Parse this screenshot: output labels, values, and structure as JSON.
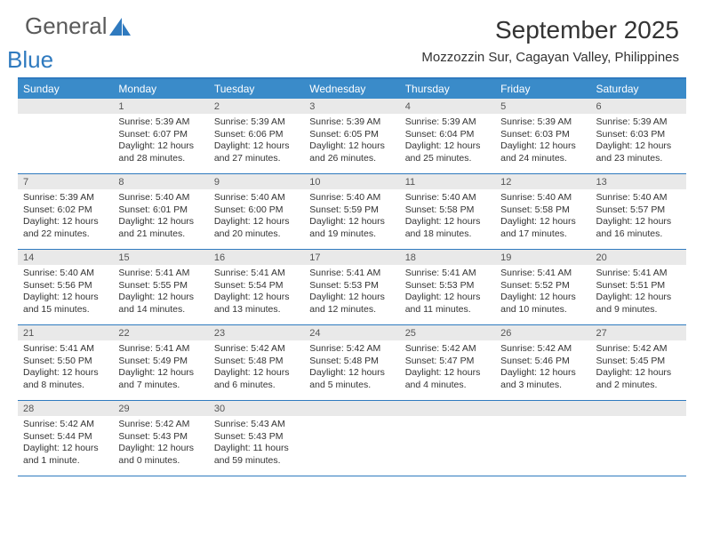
{
  "brand": {
    "general": "General",
    "blue": "Blue"
  },
  "title": "September 2025",
  "location": "Mozzozzin Sur, Cagayan Valley, Philippines",
  "colors": {
    "header_bg": "#3a8bc9",
    "border": "#2f7abf",
    "daynum_bg": "#e9e9e9",
    "text": "#333333",
    "page_bg": "#ffffff"
  },
  "days_of_week": [
    "Sunday",
    "Monday",
    "Tuesday",
    "Wednesday",
    "Thursday",
    "Friday",
    "Saturday"
  ],
  "weeks": [
    [
      {
        "n": "",
        "sunrise": "",
        "sunset": "",
        "daylight": ""
      },
      {
        "n": "1",
        "sunrise": "Sunrise: 5:39 AM",
        "sunset": "Sunset: 6:07 PM",
        "daylight": "Daylight: 12 hours and 28 minutes."
      },
      {
        "n": "2",
        "sunrise": "Sunrise: 5:39 AM",
        "sunset": "Sunset: 6:06 PM",
        "daylight": "Daylight: 12 hours and 27 minutes."
      },
      {
        "n": "3",
        "sunrise": "Sunrise: 5:39 AM",
        "sunset": "Sunset: 6:05 PM",
        "daylight": "Daylight: 12 hours and 26 minutes."
      },
      {
        "n": "4",
        "sunrise": "Sunrise: 5:39 AM",
        "sunset": "Sunset: 6:04 PM",
        "daylight": "Daylight: 12 hours and 25 minutes."
      },
      {
        "n": "5",
        "sunrise": "Sunrise: 5:39 AM",
        "sunset": "Sunset: 6:03 PM",
        "daylight": "Daylight: 12 hours and 24 minutes."
      },
      {
        "n": "6",
        "sunrise": "Sunrise: 5:39 AM",
        "sunset": "Sunset: 6:03 PM",
        "daylight": "Daylight: 12 hours and 23 minutes."
      }
    ],
    [
      {
        "n": "7",
        "sunrise": "Sunrise: 5:39 AM",
        "sunset": "Sunset: 6:02 PM",
        "daylight": "Daylight: 12 hours and 22 minutes."
      },
      {
        "n": "8",
        "sunrise": "Sunrise: 5:40 AM",
        "sunset": "Sunset: 6:01 PM",
        "daylight": "Daylight: 12 hours and 21 minutes."
      },
      {
        "n": "9",
        "sunrise": "Sunrise: 5:40 AM",
        "sunset": "Sunset: 6:00 PM",
        "daylight": "Daylight: 12 hours and 20 minutes."
      },
      {
        "n": "10",
        "sunrise": "Sunrise: 5:40 AM",
        "sunset": "Sunset: 5:59 PM",
        "daylight": "Daylight: 12 hours and 19 minutes."
      },
      {
        "n": "11",
        "sunrise": "Sunrise: 5:40 AM",
        "sunset": "Sunset: 5:58 PM",
        "daylight": "Daylight: 12 hours and 18 minutes."
      },
      {
        "n": "12",
        "sunrise": "Sunrise: 5:40 AM",
        "sunset": "Sunset: 5:58 PM",
        "daylight": "Daylight: 12 hours and 17 minutes."
      },
      {
        "n": "13",
        "sunrise": "Sunrise: 5:40 AM",
        "sunset": "Sunset: 5:57 PM",
        "daylight": "Daylight: 12 hours and 16 minutes."
      }
    ],
    [
      {
        "n": "14",
        "sunrise": "Sunrise: 5:40 AM",
        "sunset": "Sunset: 5:56 PM",
        "daylight": "Daylight: 12 hours and 15 minutes."
      },
      {
        "n": "15",
        "sunrise": "Sunrise: 5:41 AM",
        "sunset": "Sunset: 5:55 PM",
        "daylight": "Daylight: 12 hours and 14 minutes."
      },
      {
        "n": "16",
        "sunrise": "Sunrise: 5:41 AM",
        "sunset": "Sunset: 5:54 PM",
        "daylight": "Daylight: 12 hours and 13 minutes."
      },
      {
        "n": "17",
        "sunrise": "Sunrise: 5:41 AM",
        "sunset": "Sunset: 5:53 PM",
        "daylight": "Daylight: 12 hours and 12 minutes."
      },
      {
        "n": "18",
        "sunrise": "Sunrise: 5:41 AM",
        "sunset": "Sunset: 5:53 PM",
        "daylight": "Daylight: 12 hours and 11 minutes."
      },
      {
        "n": "19",
        "sunrise": "Sunrise: 5:41 AM",
        "sunset": "Sunset: 5:52 PM",
        "daylight": "Daylight: 12 hours and 10 minutes."
      },
      {
        "n": "20",
        "sunrise": "Sunrise: 5:41 AM",
        "sunset": "Sunset: 5:51 PM",
        "daylight": "Daylight: 12 hours and 9 minutes."
      }
    ],
    [
      {
        "n": "21",
        "sunrise": "Sunrise: 5:41 AM",
        "sunset": "Sunset: 5:50 PM",
        "daylight": "Daylight: 12 hours and 8 minutes."
      },
      {
        "n": "22",
        "sunrise": "Sunrise: 5:41 AM",
        "sunset": "Sunset: 5:49 PM",
        "daylight": "Daylight: 12 hours and 7 minutes."
      },
      {
        "n": "23",
        "sunrise": "Sunrise: 5:42 AM",
        "sunset": "Sunset: 5:48 PM",
        "daylight": "Daylight: 12 hours and 6 minutes."
      },
      {
        "n": "24",
        "sunrise": "Sunrise: 5:42 AM",
        "sunset": "Sunset: 5:48 PM",
        "daylight": "Daylight: 12 hours and 5 minutes."
      },
      {
        "n": "25",
        "sunrise": "Sunrise: 5:42 AM",
        "sunset": "Sunset: 5:47 PM",
        "daylight": "Daylight: 12 hours and 4 minutes."
      },
      {
        "n": "26",
        "sunrise": "Sunrise: 5:42 AM",
        "sunset": "Sunset: 5:46 PM",
        "daylight": "Daylight: 12 hours and 3 minutes."
      },
      {
        "n": "27",
        "sunrise": "Sunrise: 5:42 AM",
        "sunset": "Sunset: 5:45 PM",
        "daylight": "Daylight: 12 hours and 2 minutes."
      }
    ],
    [
      {
        "n": "28",
        "sunrise": "Sunrise: 5:42 AM",
        "sunset": "Sunset: 5:44 PM",
        "daylight": "Daylight: 12 hours and 1 minute."
      },
      {
        "n": "29",
        "sunrise": "Sunrise: 5:42 AM",
        "sunset": "Sunset: 5:43 PM",
        "daylight": "Daylight: 12 hours and 0 minutes."
      },
      {
        "n": "30",
        "sunrise": "Sunrise: 5:43 AM",
        "sunset": "Sunset: 5:43 PM",
        "daylight": "Daylight: 11 hours and 59 minutes."
      },
      {
        "n": "",
        "sunrise": "",
        "sunset": "",
        "daylight": ""
      },
      {
        "n": "",
        "sunrise": "",
        "sunset": "",
        "daylight": ""
      },
      {
        "n": "",
        "sunrise": "",
        "sunset": "",
        "daylight": ""
      },
      {
        "n": "",
        "sunrise": "",
        "sunset": "",
        "daylight": ""
      }
    ]
  ]
}
